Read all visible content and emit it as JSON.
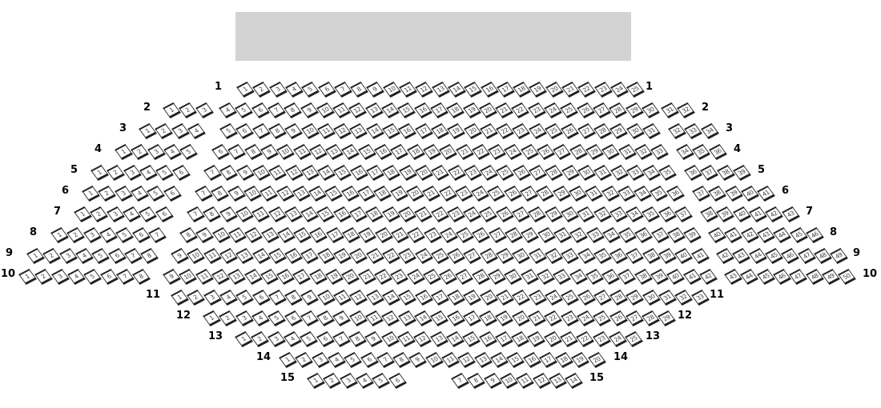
{
  "stage_color": "#d3d3d3",
  "rows": [
    {
      "label": "1",
      "sections": [
        [
          1,
          25
        ]
      ]
    },
    {
      "label": "2",
      "sections": [
        [
          1,
          3
        ],
        [
          4,
          30
        ],
        [
          31,
          32
        ]
      ]
    },
    {
      "label": "3",
      "sections": [
        [
          1,
          4
        ],
        [
          5,
          31
        ],
        [
          32,
          34
        ]
      ]
    },
    {
      "label": "4",
      "sections": [
        [
          1,
          5
        ],
        [
          6,
          33
        ],
        [
          34,
          36
        ]
      ]
    },
    {
      "label": "5",
      "sections": [
        [
          1,
          6
        ],
        [
          7,
          35
        ],
        [
          36,
          39
        ]
      ]
    },
    {
      "label": "6",
      "sections": [
        [
          1,
          6
        ],
        [
          7,
          36
        ],
        [
          37,
          41
        ]
      ]
    },
    {
      "label": "7",
      "sections": [
        [
          1,
          6
        ],
        [
          7,
          37
        ],
        [
          38,
          43
        ]
      ]
    },
    {
      "label": "8",
      "sections": [
        [
          1,
          7
        ],
        [
          8,
          39
        ],
        [
          40,
          46
        ]
      ]
    },
    {
      "label": "9",
      "sections": [
        [
          1,
          8
        ],
        [
          9,
          41
        ],
        [
          42,
          49
        ]
      ]
    },
    {
      "label": "10",
      "sections": [
        [
          1,
          8
        ],
        [
          9,
          42
        ],
        [
          43,
          50
        ]
      ]
    },
    {
      "label": "11",
      "sections": [
        [
          1,
          33
        ]
      ]
    },
    {
      "label": "12",
      "sections": [
        [
          1,
          29
        ]
      ]
    },
    {
      "label": "13",
      "sections": [
        [
          1,
          25
        ]
      ]
    },
    {
      "label": "14",
      "sections": [
        [
          1,
          20
        ]
      ]
    },
    {
      "label": "15",
      "sections": [
        [
          1,
          6
        ],
        [
          7,
          14
        ]
      ]
    }
  ]
}
